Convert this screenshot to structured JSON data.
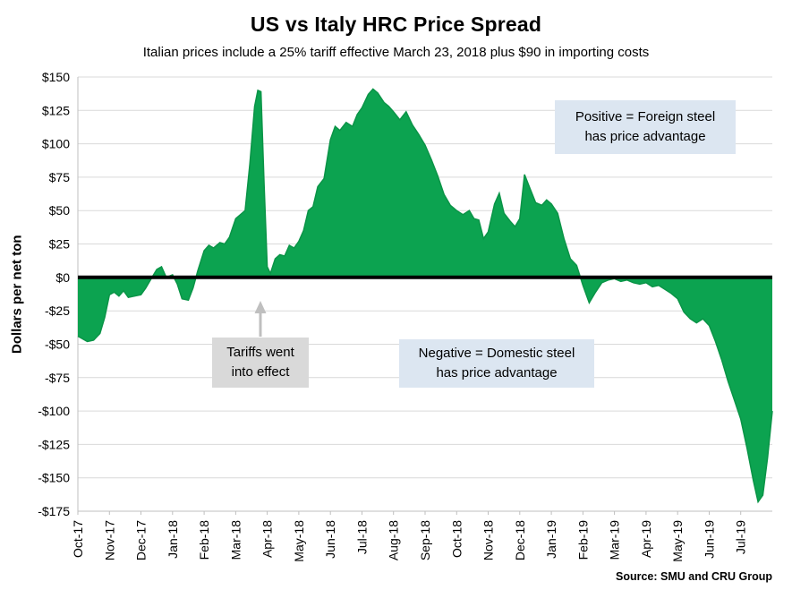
{
  "chart_data": {
    "type": "area",
    "title": "US vs Italy HRC Price Spread",
    "subtitle": "Italian prices include a 25% tariff effective March 23, 2018 plus $90 in importing costs",
    "ylabel": "Dollars per net ton",
    "xlabel": "",
    "source": "Source: SMU and CRU Group",
    "grid": true,
    "legend": "none",
    "ylim": [
      -175,
      150
    ],
    "xlim": [
      0,
      22
    ],
    "yticks": [
      150,
      125,
      100,
      75,
      50,
      25,
      0,
      -25,
      -50,
      -75,
      -100,
      -125,
      -150,
      -175
    ],
    "ytick_labels": [
      "$150",
      "$125",
      "$100",
      "$75",
      "$50",
      "$25",
      "$0",
      "-$25",
      "-$50",
      "-$75",
      "-$100",
      "-$125",
      "-$150",
      "-$175"
    ],
    "categories": [
      "Oct-17",
      "Nov-17",
      "Dec-17",
      "Jan-18",
      "Feb-18",
      "Mar-18",
      "Apr-18",
      "May-18",
      "Jun-18",
      "Jul-18",
      "Aug-18",
      "Sep-18",
      "Oct-18",
      "Nov-18",
      "Dec-18",
      "Jan-19",
      "Feb-19",
      "Mar-19",
      "Apr-19",
      "May-19",
      "Jun-19",
      "Jul-19"
    ],
    "grid_color": "#d9d9d9",
    "axis_color": "#bfbfbf",
    "zero_line_color": "#000000",
    "series": [
      {
        "name": "US vs Italy HRC price spread ($/net ton)",
        "color": "#0ca350",
        "stroke_color": "#0a9447",
        "points": [
          [
            0,
            -44
          ],
          [
            0.15,
            -46
          ],
          [
            0.3,
            -48
          ],
          [
            0.5,
            -47
          ],
          [
            0.7,
            -42
          ],
          [
            0.85,
            -30
          ],
          [
            1,
            -13
          ],
          [
            1.15,
            -11
          ],
          [
            1.3,
            -14
          ],
          [
            1.45,
            -10
          ],
          [
            1.6,
            -15
          ],
          [
            1.8,
            -14
          ],
          [
            2,
            -13
          ],
          [
            2.15,
            -8
          ],
          [
            2.3,
            -2
          ],
          [
            2.5,
            6
          ],
          [
            2.65,
            8
          ],
          [
            2.8,
            0
          ],
          [
            3,
            2
          ],
          [
            3.15,
            -5
          ],
          [
            3.3,
            -16
          ],
          [
            3.5,
            -17
          ],
          [
            3.65,
            -8
          ],
          [
            3.8,
            5
          ],
          [
            4,
            20
          ],
          [
            4.15,
            24
          ],
          [
            4.3,
            22
          ],
          [
            4.5,
            26
          ],
          [
            4.65,
            25
          ],
          [
            4.8,
            30
          ],
          [
            5,
            44
          ],
          [
            5.15,
            47
          ],
          [
            5.3,
            50
          ],
          [
            5.45,
            85
          ],
          [
            5.6,
            128
          ],
          [
            5.7,
            140
          ],
          [
            5.8,
            139
          ],
          [
            5.9,
            70
          ],
          [
            6,
            8
          ],
          [
            6.1,
            3
          ],
          [
            6.25,
            14
          ],
          [
            6.4,
            17
          ],
          [
            6.55,
            16
          ],
          [
            6.7,
            24
          ],
          [
            6.85,
            22
          ],
          [
            7,
            27
          ],
          [
            7.15,
            35
          ],
          [
            7.3,
            50
          ],
          [
            7.45,
            53
          ],
          [
            7.6,
            68
          ],
          [
            7.8,
            74
          ],
          [
            8,
            103
          ],
          [
            8.15,
            113
          ],
          [
            8.3,
            110
          ],
          [
            8.5,
            116
          ],
          [
            8.7,
            113
          ],
          [
            8.85,
            122
          ],
          [
            9,
            127
          ],
          [
            9.2,
            137
          ],
          [
            9.35,
            141
          ],
          [
            9.5,
            138
          ],
          [
            9.7,
            131
          ],
          [
            9.85,
            128
          ],
          [
            10,
            124
          ],
          [
            10.2,
            118
          ],
          [
            10.4,
            124
          ],
          [
            10.6,
            114
          ],
          [
            10.8,
            107
          ],
          [
            11,
            99
          ],
          [
            11.2,
            88
          ],
          [
            11.4,
            76
          ],
          [
            11.6,
            62
          ],
          [
            11.8,
            54
          ],
          [
            12,
            50
          ],
          [
            12.2,
            47
          ],
          [
            12.4,
            50
          ],
          [
            12.55,
            44
          ],
          [
            12.7,
            43
          ],
          [
            12.85,
            29
          ],
          [
            13,
            34
          ],
          [
            13.2,
            55
          ],
          [
            13.35,
            63
          ],
          [
            13.5,
            48
          ],
          [
            13.7,
            42
          ],
          [
            13.85,
            38
          ],
          [
            14,
            44
          ],
          [
            14.15,
            77
          ],
          [
            14.3,
            68
          ],
          [
            14.5,
            56
          ],
          [
            14.7,
            54
          ],
          [
            14.85,
            58
          ],
          [
            15,
            55
          ],
          [
            15.2,
            48
          ],
          [
            15.4,
            29
          ],
          [
            15.6,
            14
          ],
          [
            15.8,
            9
          ],
          [
            16,
            -6
          ],
          [
            16.2,
            -19
          ],
          [
            16.4,
            -11
          ],
          [
            16.6,
            -4
          ],
          [
            16.8,
            -2
          ],
          [
            17,
            -1
          ],
          [
            17.2,
            -3
          ],
          [
            17.4,
            -2
          ],
          [
            17.6,
            -4
          ],
          [
            17.8,
            -5
          ],
          [
            18,
            -4
          ],
          [
            18.2,
            -7
          ],
          [
            18.4,
            -6
          ],
          [
            18.6,
            -9
          ],
          [
            18.8,
            -12
          ],
          [
            19,
            -16
          ],
          [
            19.2,
            -26
          ],
          [
            19.4,
            -31
          ],
          [
            19.6,
            -34
          ],
          [
            19.8,
            -31
          ],
          [
            20,
            -36
          ],
          [
            20.2,
            -48
          ],
          [
            20.4,
            -62
          ],
          [
            20.6,
            -78
          ],
          [
            20.8,
            -92
          ],
          [
            21,
            -106
          ],
          [
            21.2,
            -128
          ],
          [
            21.4,
            -152
          ],
          [
            21.55,
            -168
          ],
          [
            21.7,
            -163
          ],
          [
            21.85,
            -135
          ],
          [
            22,
            -100
          ]
        ]
      }
    ]
  },
  "annotations": {
    "positive": {
      "line1": "Positive = Foreign steel",
      "line2": "has price advantage",
      "bg": "#dce6f1"
    },
    "negative": {
      "line1": "Negative = Domestic steel",
      "line2": "has price advantage",
      "bg": "#dce6f1"
    },
    "tariffs": {
      "line1": "Tariffs went",
      "line2": "into effect",
      "bg": "#d9d9d9",
      "arrow_color": "#bfbfbf"
    }
  }
}
